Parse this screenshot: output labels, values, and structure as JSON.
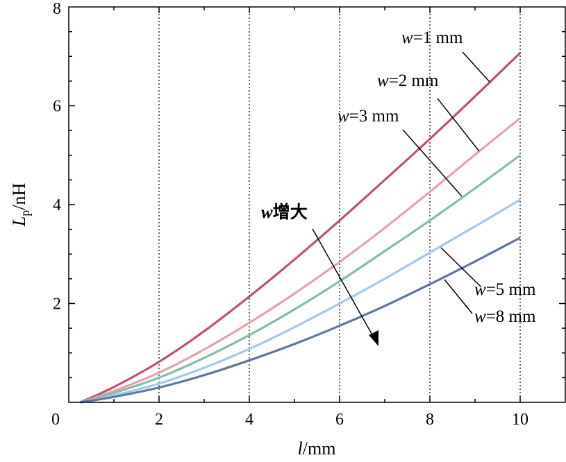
{
  "chart_data": {
    "type": "line",
    "xlabel": {
      "var": "l",
      "unit": "/mm"
    },
    "ylabel": {
      "var": "L",
      "sub": "p",
      "unit": "/nH"
    },
    "xlim": [
      0,
      11
    ],
    "ylim": [
      0,
      8
    ],
    "xticks": [
      0,
      2,
      4,
      6,
      8,
      10
    ],
    "yticks": [
      2,
      4,
      6,
      8
    ],
    "minor_ticks": true,
    "grid": "vertical dotted at x = 2, 4, 6, 8, 10",
    "series": [
      {
        "name": "w=1 mm",
        "color": "#c0506e",
        "x": [
          0.25,
          1,
          2,
          3,
          4,
          5,
          6,
          7,
          8,
          9,
          10
        ],
        "y": [
          0.0,
          0.31,
          0.82,
          1.44,
          2.14,
          2.89,
          3.68,
          4.5,
          5.33,
          6.19,
          7.07
        ]
      },
      {
        "name": "w=2 mm",
        "color": "#e8a3a8",
        "x": [
          0.25,
          1,
          2,
          3,
          4,
          5,
          6,
          7,
          8,
          9,
          10
        ],
        "y": [
          0.0,
          0.23,
          0.6,
          1.07,
          1.61,
          2.2,
          2.84,
          3.53,
          4.26,
          5.01,
          5.75
        ]
      },
      {
        "name": "w=3 mm",
        "color": "#7fbfa6",
        "x": [
          0.25,
          1,
          2,
          3,
          4,
          5,
          6,
          7,
          8,
          9,
          10
        ],
        "y": [
          0.0,
          0.19,
          0.5,
          0.9,
          1.36,
          1.88,
          2.45,
          3.06,
          3.68,
          4.33,
          5.0
        ]
      },
      {
        "name": "w=5 mm",
        "color": "#a4c8ea",
        "x": [
          0.25,
          1,
          2,
          3,
          4,
          5,
          6,
          7,
          8,
          9,
          10
        ],
        "y": [
          0.0,
          0.14,
          0.38,
          0.7,
          1.08,
          1.52,
          2.0,
          2.5,
          3.03,
          3.56,
          4.1
        ]
      },
      {
        "name": "w=8 mm",
        "color": "#5f77a0",
        "x": [
          0.25,
          1,
          2,
          3,
          4,
          5,
          6,
          7,
          8,
          9,
          10
        ],
        "y": [
          0.0,
          0.11,
          0.3,
          0.55,
          0.85,
          1.18,
          1.55,
          1.95,
          2.39,
          2.85,
          3.33
        ]
      }
    ],
    "annotations": {
      "labels": [
        {
          "var": "w",
          "rest": "=1 mm"
        },
        {
          "var": "w",
          "rest": "=2 mm"
        },
        {
          "var": "w",
          "rest": "=3 mm"
        },
        {
          "var": "w",
          "rest": "=5 mm"
        },
        {
          "var": "w",
          "rest": "=8 mm"
        }
      ],
      "trend": {
        "var": "w",
        "rest": "增大"
      }
    }
  }
}
